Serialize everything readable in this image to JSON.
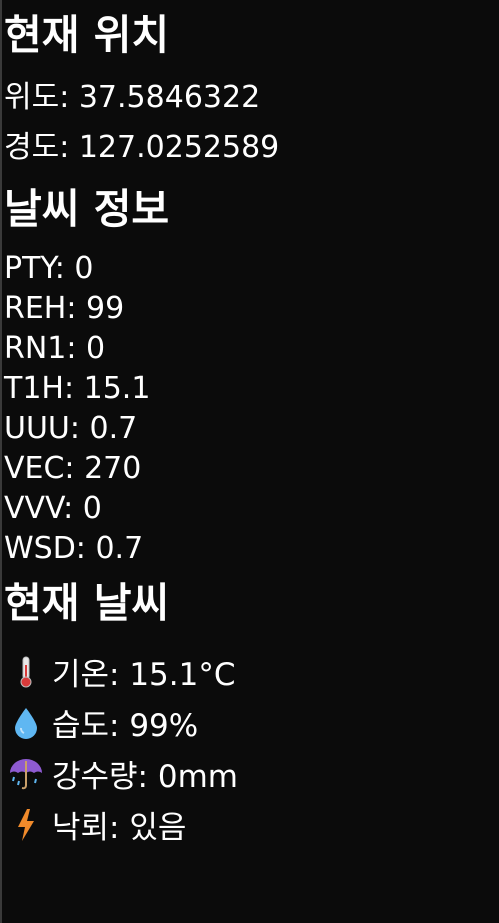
{
  "location": {
    "title": "현재 위치",
    "lat_label": "위도: 37.5846322",
    "lng_label": "경도: 127.0252589"
  },
  "weather": {
    "title": "날씨 정보",
    "rows": [
      {
        "text": "PTY: 0"
      },
      {
        "text": "REH: 99"
      },
      {
        "text": "RN1: 0"
      },
      {
        "text": "T1H: 15.1"
      },
      {
        "text": "UUU: 0.7"
      },
      {
        "text": "VEC: 270"
      },
      {
        "text": "VVV: 0"
      },
      {
        "text": "WSD: 0.7"
      }
    ]
  },
  "current": {
    "title": "현재 날씨",
    "items": [
      {
        "icon": "thermometer-icon",
        "text": "기온: 15.1°C"
      },
      {
        "icon": "droplet-icon",
        "text": "습도: 99%"
      },
      {
        "icon": "umbrella-rain-icon",
        "text": "강수량: 0mm"
      },
      {
        "icon": "lightning-icon",
        "text": "낙뢰: 있음"
      }
    ]
  },
  "colors": {
    "background": "#0b0b0b",
    "text": "#ffffff",
    "droplet": "#5fb7f2",
    "umbrella": "#8e5bd1",
    "lightning": "#f08a2b"
  }
}
